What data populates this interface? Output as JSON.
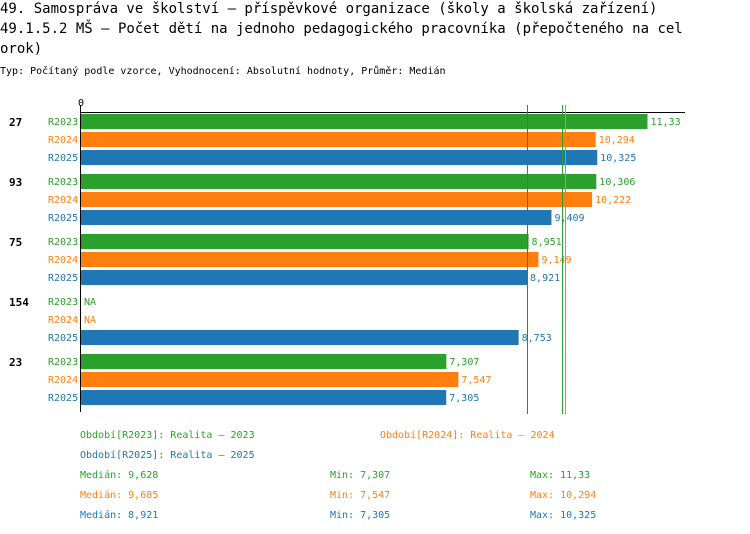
{
  "header": {
    "title_line1": "49. Samospráva ve školství – příspěvkové organizace (školy a školská zařízení)",
    "title_line2": "49.1.5.2 MŠ – Počet dětí na jednoho pedagogického pracovníka (přepočteného na cel",
    "title_line3": "orok)",
    "subtitle": "Typ: Počítaný podle vzorce, Vyhodnocení: Absolutní hodnoty, Průměr: Medián"
  },
  "colors": {
    "R2023": "#2ca02c",
    "R2024": "#ff7f0e",
    "R2025": "#1f77b4"
  },
  "chart_data": {
    "type": "bar",
    "orientation": "horizontal",
    "xlim": [
      0,
      12
    ],
    "zero_label": "0",
    "series_names": [
      "R2023",
      "R2024",
      "R2025"
    ],
    "groups": [
      {
        "label": "27",
        "values": [
          11.33,
          10.294,
          10.325
        ],
        "texts": [
          "11,33",
          "10,294",
          "10,325"
        ]
      },
      {
        "label": "93",
        "values": [
          10.306,
          10.222,
          9.409
        ],
        "texts": [
          "10,306",
          "10,222",
          "9,409"
        ]
      },
      {
        "label": "75",
        "values": [
          8.951,
          9.149,
          8.921
        ],
        "texts": [
          "8,951",
          "9,149",
          "8,921"
        ]
      },
      {
        "label": "154",
        "values": [
          null,
          null,
          8.753
        ],
        "texts": [
          "NA",
          "NA",
          "8,753"
        ]
      },
      {
        "label": "23",
        "values": [
          7.307,
          7.547,
          7.305
        ],
        "texts": [
          "7,307",
          "7,547",
          "7,305"
        ]
      }
    ],
    "medians": {
      "R2023": 9.628,
      "R2024": 9.685,
      "R2025": 8.921
    }
  },
  "legend": {
    "periods": [
      {
        "text": "Období[R2023]: Realita – 2023"
      },
      {
        "text": "Období[R2024]: Realita – 2024"
      },
      {
        "text": "Období[R2025]: Realita – 2025"
      }
    ],
    "stats": [
      {
        "median": "Medián: 9,628",
        "min": "Min: 7,307",
        "max": "Max: 11,33"
      },
      {
        "median": "Medián: 9,685",
        "min": "Min: 7,547",
        "max": "Max: 10,294"
      },
      {
        "median": "Medián: 8,921",
        "min": "Min: 7,305",
        "max": "Max: 10,325"
      }
    ]
  }
}
